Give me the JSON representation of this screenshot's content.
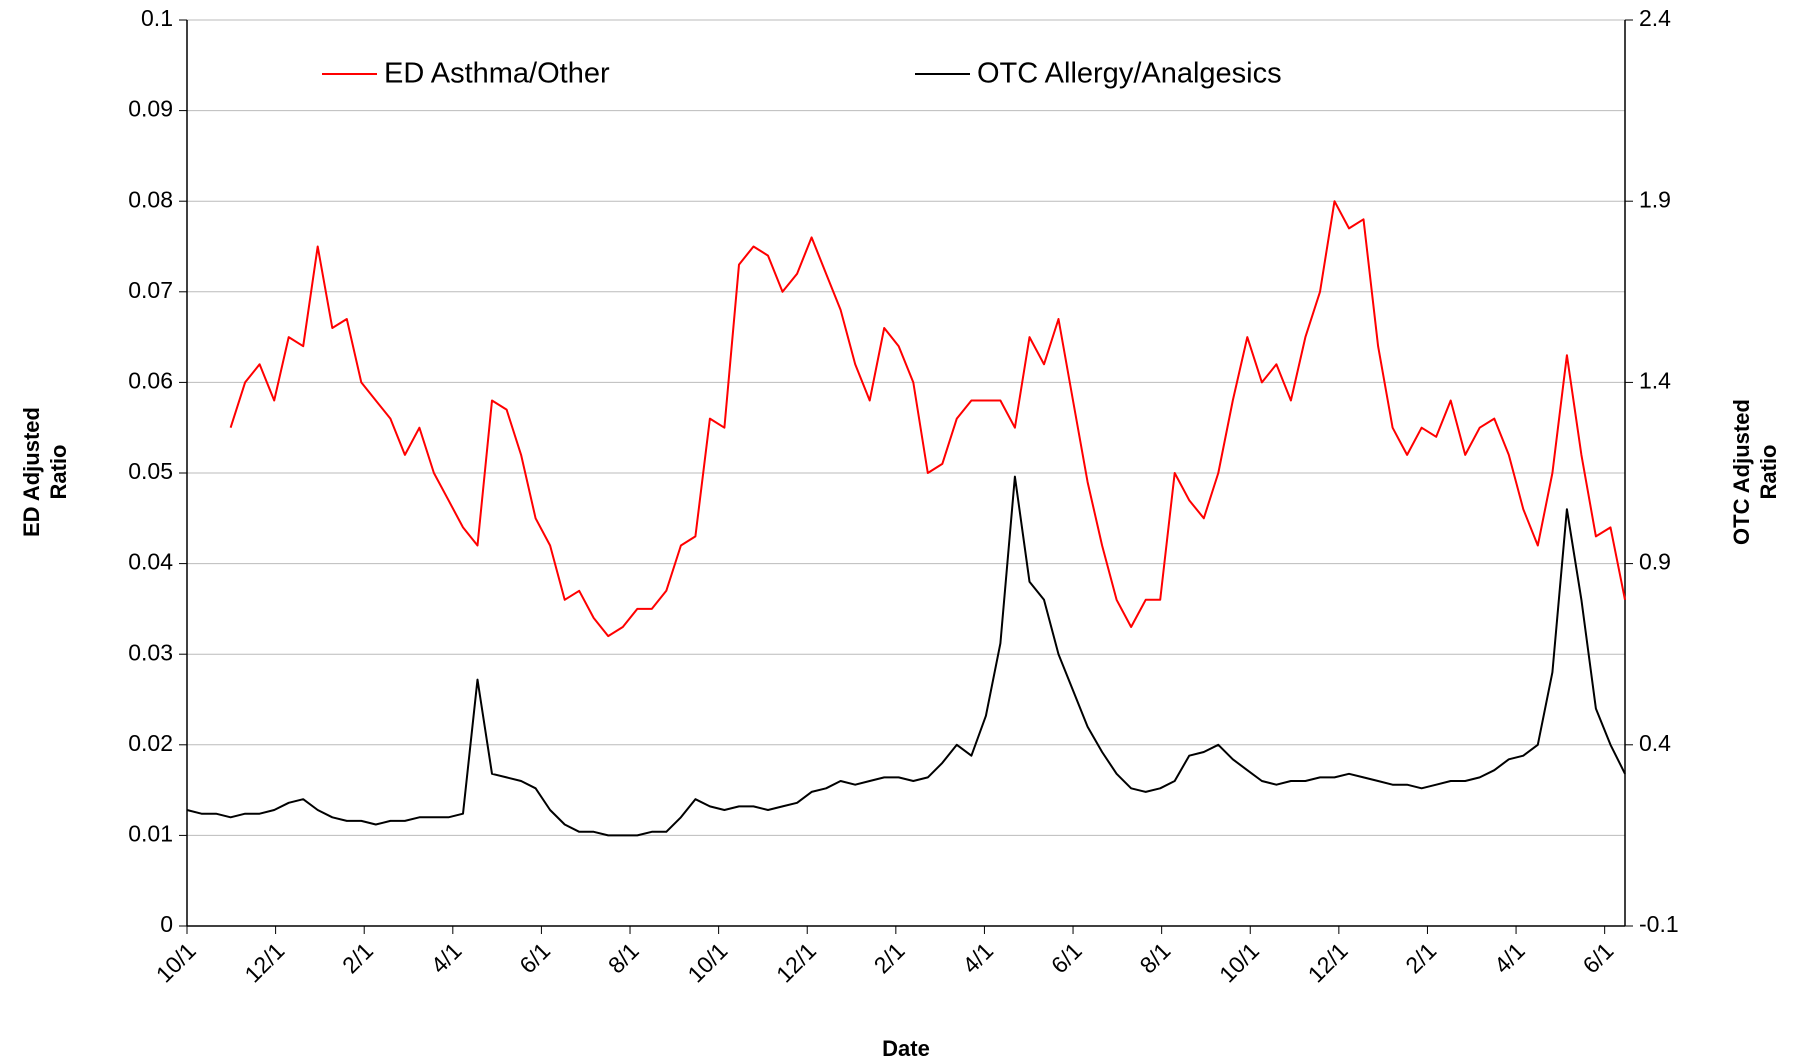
{
  "chart_data": {
    "type": "line",
    "x_label": "Date",
    "y_label": "ED Adjusted Ratio",
    "y2_label": "OTC Adjusted Ratio",
    "x": [
      0,
      10,
      20,
      30,
      40,
      50,
      60,
      70,
      80,
      90,
      100,
      110,
      120,
      130,
      140,
      150,
      160,
      170,
      180,
      190,
      200,
      210,
      220,
      230,
      240,
      250,
      260,
      270,
      280,
      290,
      300,
      310,
      320,
      330,
      340,
      350,
      360,
      370,
      380,
      390,
      400,
      410,
      420,
      430,
      440,
      450,
      460,
      470,
      480,
      490,
      500,
      510,
      520,
      530,
      540,
      550,
      560,
      570,
      580,
      590,
      600,
      610,
      620,
      630,
      640,
      650,
      660,
      670,
      680,
      690,
      700,
      710,
      720,
      730,
      740,
      750,
      760,
      770,
      780,
      790,
      800,
      810,
      820,
      830,
      840,
      850,
      860,
      870,
      880,
      890,
      900,
      910,
      920,
      930,
      940,
      950,
      960,
      970,
      980,
      990
    ],
    "xlim": [
      0,
      990
    ],
    "xticks": [
      {
        "value": 0,
        "label": "10/1"
      },
      {
        "value": 61,
        "label": "12/1"
      },
      {
        "value": 122,
        "label": "2/1"
      },
      {
        "value": 183,
        "label": "4/1"
      },
      {
        "value": 244,
        "label": "6/1"
      },
      {
        "value": 305,
        "label": "8/1"
      },
      {
        "value": 366,
        "label": "10/1"
      },
      {
        "value": 427,
        "label": "12/1"
      },
      {
        "value": 488,
        "label": "2/1"
      },
      {
        "value": 549,
        "label": "4/1"
      },
      {
        "value": 610,
        "label": "6/1"
      },
      {
        "value": 671,
        "label": "8/1"
      },
      {
        "value": 732,
        "label": "10/1"
      },
      {
        "value": 793,
        "label": "12/1"
      },
      {
        "value": 854,
        "label": "2/1"
      },
      {
        "value": 915,
        "label": "4/1"
      },
      {
        "value": 976,
        "label": "6/1"
      }
    ],
    "ylim": [
      0,
      0.1
    ],
    "yticks": [
      0,
      0.01,
      0.02,
      0.03,
      0.04,
      0.05,
      0.06,
      0.07,
      0.08,
      0.09,
      0.1
    ],
    "y2lim": [
      -0.1,
      2.4
    ],
    "y2ticks": [
      -0.1,
      0.4,
      0.9,
      1.4,
      1.9,
      2.4
    ],
    "grid": true,
    "legend": "top",
    "series": [
      {
        "name": "ED Asthma/Other",
        "color": "#ff0000",
        "values": [
          null,
          null,
          null,
          0.055,
          0.06,
          0.062,
          0.058,
          0.065,
          0.064,
          0.075,
          0.066,
          0.067,
          0.06,
          0.058,
          0.056,
          0.052,
          0.055,
          0.05,
          0.047,
          0.044,
          0.042,
          0.058,
          0.057,
          0.052,
          0.045,
          0.042,
          0.036,
          0.037,
          0.034,
          0.032,
          0.033,
          0.035,
          0.035,
          0.037,
          0.042,
          0.043,
          0.056,
          0.055,
          0.073,
          0.075,
          0.074,
          0.07,
          0.072,
          0.076,
          0.072,
          0.068,
          0.062,
          0.058,
          0.066,
          0.064,
          0.06,
          0.05,
          0.051,
          0.056,
          0.058,
          0.058,
          0.058,
          0.055,
          0.065,
          0.062,
          0.067,
          0.058,
          0.049,
          0.042,
          0.036,
          0.033,
          0.036,
          0.036,
          0.05,
          0.047,
          0.045,
          0.05,
          0.058,
          0.065,
          0.06,
          0.062,
          0.058,
          0.065,
          0.07,
          0.08,
          0.077,
          0.078,
          0.064,
          0.055,
          0.052,
          0.055,
          0.054,
          0.058,
          0.052,
          0.055,
          0.056,
          0.052,
          0.046,
          0.042,
          0.05,
          0.063,
          0.052,
          0.043,
          0.044,
          0.036
        ]
      },
      {
        "name": "OTC Allergy/Analgesics",
        "color": "#000000",
        "axis": "y2",
        "values": [
          0.22,
          0.21,
          0.21,
          0.2,
          0.21,
          0.21,
          0.22,
          0.24,
          0.25,
          0.22,
          0.2,
          0.19,
          0.19,
          0.18,
          0.19,
          0.19,
          0.2,
          0.2,
          0.2,
          0.21,
          0.58,
          0.32,
          0.31,
          0.3,
          0.28,
          0.22,
          0.18,
          0.16,
          0.16,
          0.15,
          0.15,
          0.15,
          0.16,
          0.16,
          0.2,
          0.25,
          0.23,
          0.22,
          0.23,
          0.23,
          0.22,
          0.23,
          0.24,
          0.27,
          0.28,
          0.3,
          0.29,
          0.3,
          0.31,
          0.31,
          0.3,
          0.31,
          0.35,
          0.4,
          0.37,
          0.48,
          0.68,
          1.14,
          0.85,
          0.8,
          0.65,
          0.55,
          0.45,
          0.38,
          0.32,
          0.28,
          0.27,
          0.28,
          0.3,
          0.37,
          0.38,
          0.4,
          0.36,
          0.33,
          0.3,
          0.29,
          0.3,
          0.3,
          0.31,
          0.31,
          0.32,
          0.31,
          0.3,
          0.29,
          0.29,
          0.28,
          0.29,
          0.3,
          0.3,
          0.31,
          0.33,
          0.36,
          0.37,
          0.4,
          0.6,
          1.05,
          0.8,
          0.5,
          0.4,
          0.32
        ]
      }
    ]
  }
}
